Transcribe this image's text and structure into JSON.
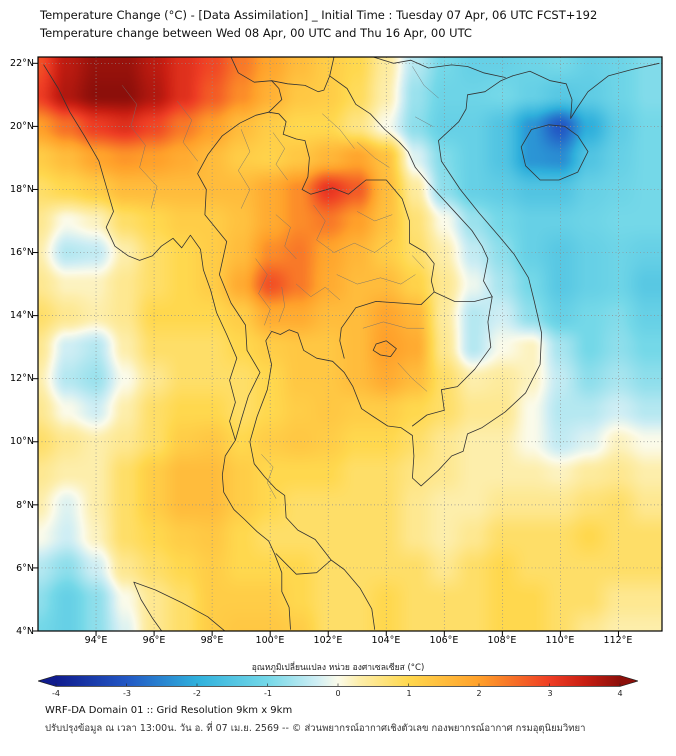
{
  "header": {
    "title_line1": "Temperature Change (°C) - [Data Assimilation] _ Initial Time : Tuesday 07 Apr, 06 UTC FCST+192",
    "title_line2": "Temperature change between Wed 08 Apr, 00 UTC and Thu 16 Apr, 00 UTC"
  },
  "axes": {
    "lat_ticks": [
      "22°N",
      "20°N",
      "18°N",
      "16°N",
      "14°N",
      "12°N",
      "10°N",
      "8°N",
      "6°N",
      "4°N"
    ],
    "lon_ticks": [
      "94°E",
      "96°E",
      "98°E",
      "100°E",
      "102°E",
      "104°E",
      "106°E",
      "108°E",
      "110°E",
      "112°E"
    ]
  },
  "colorbar": {
    "label": "อุณหภูมิเปลี่ยนแปลง หน่วย องศาเซลเซียส (°C)",
    "tick_labels": [
      "-4",
      "-3",
      "-2",
      "-1",
      "0",
      "1",
      "2",
      "3",
      "4"
    ]
  },
  "footer": {
    "line1": "WRF-DA Domain 01 :: Grid Resolution 9km x 9km",
    "line2": "ปรับปรุงข้อมูล ณ เวลา 13:00น. วัน อ. ที่ 07 เม.ย. 2569 -- © ส่วนพยากรณ์อากาศเชิงตัวเลข กองพยากรณ์อากาศ กรมอุตุนิยมวิทยา"
  },
  "chart_data": {
    "type": "heatmap",
    "title": "Temperature Change (°C) - [Data Assimilation] _ Initial Time : Tuesday 07 Apr, 06 UTC FCST+192",
    "subtitle": "Temperature change between Wed 08 Apr, 00 UTC and Thu 16 Apr, 00 UTC",
    "xlabel": "Longitude (°E)",
    "ylabel": "Latitude (°N)",
    "lon_range": [
      92.0,
      113.5
    ],
    "lat_range": [
      4.0,
      22.2
    ],
    "lon_ticks": [
      94,
      96,
      98,
      100,
      102,
      104,
      106,
      108,
      110,
      112
    ],
    "lat_ticks": [
      4,
      6,
      8,
      10,
      12,
      14,
      16,
      18,
      20,
      22
    ],
    "grid_lons": [
      92,
      93,
      94,
      95,
      96,
      97,
      98,
      99,
      100,
      101,
      102,
      103,
      104,
      105,
      106,
      107,
      108,
      109,
      110,
      111,
      112,
      113
    ],
    "grid_lats": [
      22,
      21,
      20,
      19,
      18,
      17,
      16,
      15,
      14,
      13,
      12,
      11,
      10,
      9,
      8,
      7,
      6,
      5,
      4
    ],
    "values_c": [
      [
        2.8,
        3.6,
        3.9,
        3.9,
        3.6,
        3.2,
        2.9,
        2.4,
        1.9,
        1.5,
        1.2,
        1.0,
        0.4,
        -0.5,
        -1.0,
        -1.2,
        -1.2,
        -1.1,
        -1.0,
        -1.2,
        -1.1,
        -0.9
      ],
      [
        3.0,
        3.7,
        4.0,
        4.0,
        3.7,
        3.2,
        2.7,
        2.2,
        1.7,
        1.3,
        1.2,
        0.9,
        0.3,
        -0.7,
        -1.1,
        -1.1,
        -1.0,
        -1.2,
        -1.4,
        -1.3,
        -1.1,
        -0.9
      ],
      [
        2.0,
        2.5,
        3.0,
        3.2,
        2.9,
        2.4,
        2.0,
        1.5,
        1.2,
        1.0,
        1.0,
        0.6,
        0.0,
        -0.8,
        -1.2,
        -1.2,
        -1.5,
        -2.3,
        -3.0,
        -2.0,
        -1.3,
        -1.0
      ],
      [
        1.2,
        1.5,
        1.9,
        2.1,
        2.0,
        1.8,
        1.5,
        1.2,
        1.1,
        1.3,
        1.6,
        1.9,
        1.4,
        -0.2,
        -0.9,
        -1.2,
        -1.5,
        -2.3,
        -2.4,
        -1.5,
        -1.2,
        -1.0
      ],
      [
        0.8,
        1.0,
        1.2,
        1.5,
        1.5,
        1.5,
        1.5,
        1.5,
        1.8,
        2.2,
        3.1,
        2.7,
        1.5,
        0.4,
        -0.8,
        -1.2,
        -1.3,
        -1.5,
        -1.5,
        -1.2,
        -1.1,
        -1.0
      ],
      [
        0.5,
        0.0,
        0.2,
        0.8,
        1.0,
        1.2,
        1.2,
        1.4,
        1.8,
        2.2,
        2.4,
        2.0,
        1.4,
        0.7,
        0.0,
        -0.7,
        -1.0,
        -1.2,
        -1.2,
        -1.1,
        -1.0,
        -1.0
      ],
      [
        0.3,
        -0.5,
        -0.4,
        0.3,
        0.8,
        1.0,
        1.2,
        1.5,
        2.2,
        2.4,
        1.9,
        1.6,
        1.2,
        0.8,
        0.3,
        -0.4,
        -0.8,
        -1.2,
        -1.4,
        -1.2,
        -1.1,
        -1.2
      ],
      [
        0.5,
        0.2,
        0.2,
        0.5,
        0.8,
        1.0,
        1.2,
        1.8,
        2.8,
        2.4,
        1.8,
        1.5,
        1.5,
        1.1,
        0.5,
        -0.1,
        -0.6,
        -1.0,
        -1.4,
        -1.2,
        -1.1,
        -1.4
      ],
      [
        0.8,
        0.5,
        0.3,
        0.5,
        1.0,
        1.0,
        1.0,
        1.2,
        1.8,
        1.8,
        1.5,
        1.5,
        1.9,
        1.6,
        0.4,
        -0.5,
        -0.3,
        -0.8,
        -1.2,
        -1.0,
        -0.9,
        -1.2
      ],
      [
        0.5,
        -0.3,
        -0.5,
        0.3,
        0.8,
        0.8,
        0.8,
        1.0,
        1.2,
        1.3,
        1.3,
        1.5,
        2.0,
        1.8,
        0.5,
        -0.5,
        0.0,
        0.2,
        -0.6,
        -1.0,
        -0.8,
        -1.0
      ],
      [
        0.3,
        -0.5,
        -0.7,
        0.0,
        0.5,
        0.8,
        0.8,
        0.8,
        1.0,
        1.3,
        1.3,
        1.5,
        1.8,
        1.5,
        0.8,
        0.3,
        0.4,
        0.2,
        -0.4,
        -0.8,
        -0.6,
        -0.8
      ],
      [
        0.5,
        0.0,
        -0.3,
        0.3,
        0.8,
        1.0,
        1.0,
        0.8,
        1.0,
        1.2,
        1.3,
        1.2,
        1.2,
        1.0,
        0.8,
        0.5,
        0.5,
        0.0,
        -0.5,
        -0.5,
        -0.3,
        -0.5
      ],
      [
        0.8,
        0.5,
        0.3,
        0.5,
        0.8,
        1.2,
        1.3,
        1.0,
        1.2,
        1.3,
        1.2,
        1.0,
        1.0,
        0.8,
        0.5,
        0.3,
        0.3,
        0.0,
        -0.4,
        -0.2,
        0.2,
        0.0
      ],
      [
        0.5,
        0.3,
        0.3,
        0.8,
        1.2,
        1.5,
        1.5,
        1.2,
        1.0,
        1.0,
        1.0,
        0.8,
        0.8,
        0.6,
        0.5,
        0.3,
        0.3,
        0.3,
        0.2,
        0.4,
        0.5,
        0.3
      ],
      [
        0.3,
        -0.2,
        0.3,
        0.8,
        1.2,
        1.5,
        1.5,
        1.2,
        1.0,
        0.8,
        0.8,
        0.8,
        0.8,
        0.5,
        0.3,
        0.3,
        0.5,
        0.5,
        0.5,
        0.7,
        0.8,
        0.5
      ],
      [
        0.0,
        -0.3,
        0.2,
        0.8,
        1.0,
        1.2,
        1.3,
        1.0,
        0.8,
        0.8,
        0.8,
        0.8,
        0.8,
        0.5,
        0.3,
        0.5,
        0.8,
        0.8,
        0.8,
        1.0,
        0.8,
        0.8
      ],
      [
        -0.5,
        -0.8,
        -0.3,
        0.5,
        0.8,
        1.0,
        1.2,
        1.0,
        1.0,
        1.0,
        0.8,
        0.8,
        0.8,
        0.8,
        0.5,
        0.8,
        1.0,
        0.8,
        0.8,
        0.8,
        0.8,
        0.8
      ],
      [
        -0.8,
        -1.2,
        -0.8,
        0.0,
        0.5,
        0.8,
        1.2,
        1.2,
        1.2,
        1.0,
        0.8,
        0.8,
        1.0,
        0.8,
        0.8,
        0.8,
        1.0,
        1.0,
        0.8,
        0.8,
        0.5,
        0.5
      ],
      [
        -1.0,
        -1.2,
        -0.8,
        -0.2,
        0.5,
        0.8,
        1.2,
        1.3,
        1.3,
        1.2,
        0.8,
        0.8,
        1.0,
        0.8,
        0.8,
        0.8,
        1.0,
        1.0,
        0.8,
        0.5,
        0.3,
        0.3
      ]
    ],
    "colorbar": {
      "min": -4,
      "max": 4,
      "ticks": [
        -4,
        -3,
        -2,
        -1,
        0,
        1,
        2,
        3,
        4
      ],
      "units": "°C"
    },
    "colormap": [
      [
        -4.0,
        "#101c8e"
      ],
      [
        -3.0,
        "#2257c4"
      ],
      [
        -2.0,
        "#2fb0dc"
      ],
      [
        -1.0,
        "#74d8e8"
      ],
      [
        -0.3,
        "#cfeef4"
      ],
      [
        0.0,
        "#fbfbea"
      ],
      [
        0.3,
        "#fdeeab"
      ],
      [
        1.0,
        "#ffd84e"
      ],
      [
        2.0,
        "#ffa02a"
      ],
      [
        3.0,
        "#ee3d24"
      ],
      [
        3.5,
        "#c81e12"
      ],
      [
        4.0,
        "#8c0f0a"
      ]
    ],
    "legend_position": "bottom",
    "grid": true
  }
}
